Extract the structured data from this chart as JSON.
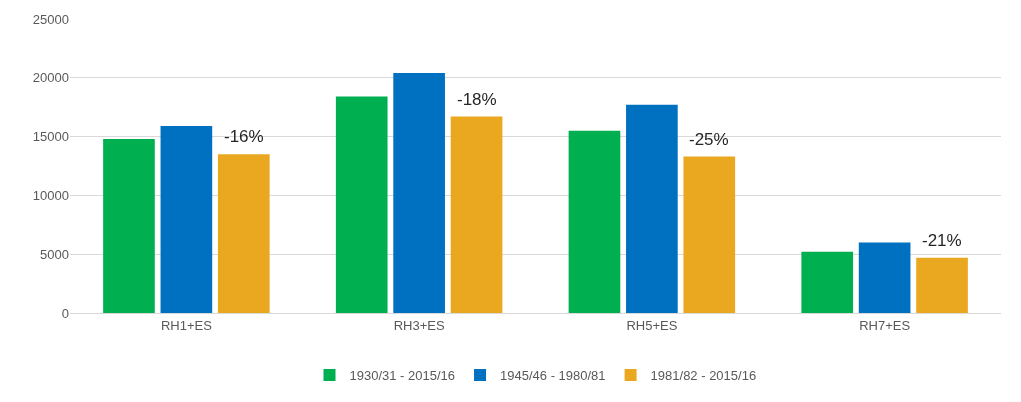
{
  "chart_data": {
    "type": "bar",
    "categories": [
      "RH1+ES",
      "RH3+ES",
      "RH5+ES",
      "RH7+ES"
    ],
    "series": [
      {
        "name": "1930/31 - 2015/16",
        "color": "#00b050",
        "values": [
          14800,
          18400,
          15500,
          5200
        ]
      },
      {
        "name": "1945/46 - 1980/81",
        "color": "#0070c0",
        "values": [
          15900,
          20400,
          17700,
          6000
        ]
      },
      {
        "name": "1981/82 - 2015/16",
        "color": "#e9a820",
        "values": [
          13500,
          16700,
          13300,
          4700
        ]
      }
    ],
    "annotations": [
      "-16%",
      "-18%",
      "-25%",
      "-21%"
    ],
    "ylim": [
      0,
      25000
    ],
    "yticks": [
      0,
      5000,
      10000,
      15000,
      20000,
      25000
    ],
    "grid": "y",
    "legend": "bottom"
  }
}
